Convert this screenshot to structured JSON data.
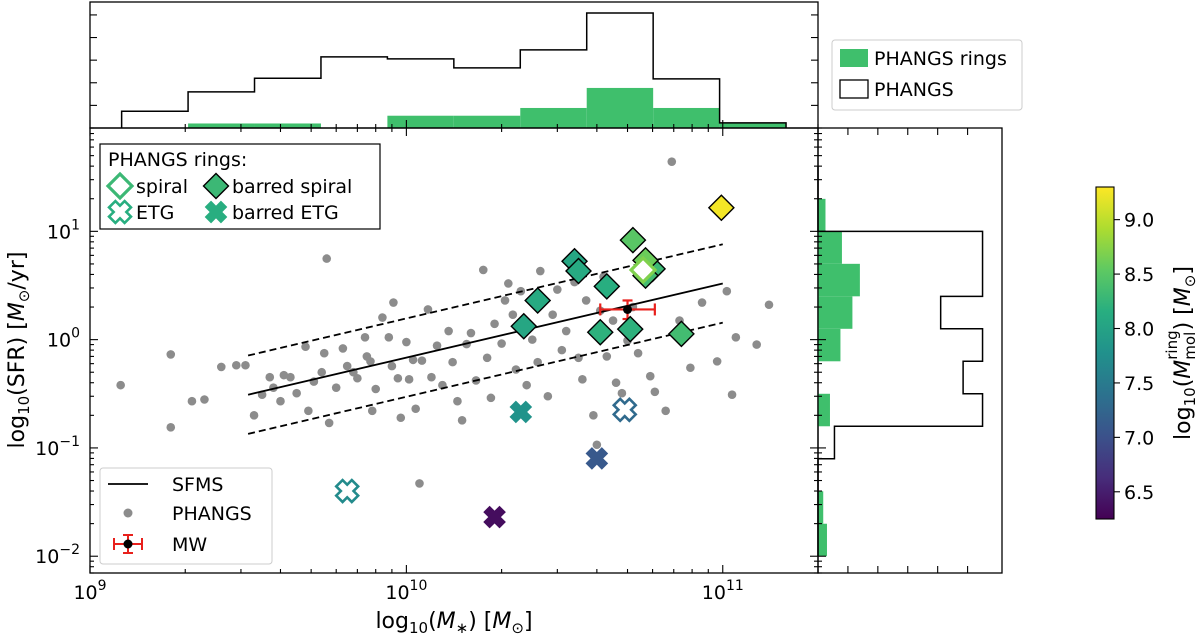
{
  "chart_data": {
    "type": "scatter",
    "xlabel": "log10(M*) [M⊙]",
    "ylabel": "log10(SFR) [M⊙/yr]",
    "x_scale": "log",
    "y_scale": "log",
    "xlim": [
      1000000000.0,
      200000000000.0
    ],
    "ylim": [
      0.007,
      90
    ],
    "x_ticks": [
      {
        "value": 1000000000.0,
        "base": "10",
        "exp": "9"
      },
      {
        "value": 10000000000.0,
        "base": "10",
        "exp": "10"
      },
      {
        "value": 100000000000.0,
        "base": "10",
        "exp": "11"
      }
    ],
    "y_ticks": [
      {
        "value": 0.01,
        "base": "10",
        "exp": "−2"
      },
      {
        "value": 0.1,
        "base": "10",
        "exp": "−1"
      },
      {
        "value": 1,
        "base": "10",
        "exp": "0"
      },
      {
        "value": 10,
        "base": "10",
        "exp": "1"
      }
    ],
    "sfms": {
      "label": "SFMS",
      "x_range": [
        3160000000.0,
        100000000000.0
      ],
      "y_range": [
        0.31,
        3.3
      ],
      "scatter_factor": 2.3
    },
    "phangs": {
      "label": "PHANGS",
      "color": "#8c8c8c",
      "points": [
        [
          1250000000.0,
          0.38
        ],
        [
          1800000000.0,
          0.73
        ],
        [
          1800000000.0,
          0.155
        ],
        [
          2100000000.0,
          0.27
        ],
        [
          2300000000.0,
          0.28
        ],
        [
          2600000000.0,
          0.56
        ],
        [
          2900000000.0,
          0.58
        ],
        [
          3100000000.0,
          0.58
        ],
        [
          3300000000.0,
          0.2
        ],
        [
          3500000000.0,
          0.31
        ],
        [
          3700000000.0,
          0.45
        ],
        [
          3800000000.0,
          0.36
        ],
        [
          4000000000.0,
          0.27
        ],
        [
          4100000000.0,
          0.47
        ],
        [
          4300000000.0,
          0.45
        ],
        [
          4500000000.0,
          0.32
        ],
        [
          4800000000.0,
          0.86
        ],
        [
          4900000000.0,
          0.22
        ],
        [
          5100000000.0,
          0.41
        ],
        [
          5400000000.0,
          0.5
        ],
        [
          5500000000.0,
          0.75
        ],
        [
          5600000000.0,
          5.6
        ],
        [
          5700000000.0,
          0.17
        ],
        [
          6000000000.0,
          0.36
        ],
        [
          6300000000.0,
          0.83
        ],
        [
          6500000000.0,
          0.57
        ],
        [
          6800000000.0,
          0.5
        ],
        [
          7000000000.0,
          0.44
        ],
        [
          7400000000.0,
          1.05
        ],
        [
          7500000000.0,
          0.7
        ],
        [
          7700000000.0,
          0.63
        ],
        [
          7800000000.0,
          0.22
        ],
        [
          8000000000.0,
          0.35
        ],
        [
          8400000000.0,
          1.6
        ],
        [
          8800000000.0,
          1.05
        ],
        [
          9000000000.0,
          0.57
        ],
        [
          9100000000.0,
          2.2
        ],
        [
          9400000000.0,
          0.44
        ],
        [
          9600000000.0,
          0.19
        ],
        [
          10000000000.0,
          0.95
        ],
        [
          10200000000.0,
          0.43
        ],
        [
          10500000000.0,
          0.65
        ],
        [
          10700000000.0,
          0.23
        ],
        [
          11000000000.0,
          0.047
        ],
        [
          11200000000.0,
          0.64
        ],
        [
          11700000000.0,
          1.9
        ],
        [
          12000000000.0,
          0.45
        ],
        [
          12500000000.0,
          0.88
        ],
        [
          13000000000.0,
          0.38
        ],
        [
          13600000000.0,
          1.2
        ],
        [
          14000000000.0,
          0.62
        ],
        [
          14500000000.0,
          0.27
        ],
        [
          15000000000.0,
          0.18
        ],
        [
          15500000000.0,
          0.91
        ],
        [
          16000000000.0,
          1.15
        ],
        [
          16600000000.0,
          0.42
        ],
        [
          17500000000.0,
          4.4
        ],
        [
          18000000000.0,
          0.68
        ],
        [
          18500000000.0,
          0.29
        ],
        [
          19000000000.0,
          1.4
        ],
        [
          20000000000.0,
          0.92
        ],
        [
          20500000000.0,
          2.3
        ],
        [
          21000000000.0,
          3.3
        ],
        [
          21700000000.0,
          1.7
        ],
        [
          22200000000.0,
          0.53
        ],
        [
          23000000000.0,
          2.8
        ],
        [
          24000000000.0,
          0.38
        ],
        [
          25000000000.0,
          1.0
        ],
        [
          26000000000.0,
          0.62
        ],
        [
          26500000000.0,
          4.3
        ],
        [
          28000000000.0,
          0.3
        ],
        [
          29000000000.0,
          1.7
        ],
        [
          30000000000.0,
          2.9
        ],
        [
          31000000000.0,
          0.8
        ],
        [
          32000000000.0,
          1.2
        ],
        [
          34000000000.0,
          3.4
        ],
        [
          35000000000.0,
          0.68
        ],
        [
          36000000000.0,
          0.43
        ],
        [
          37000000000.0,
          2.3
        ],
        [
          39000000000.0,
          0.2
        ],
        [
          40000000000.0,
          0.107
        ],
        [
          41000000000.0,
          1.85
        ],
        [
          42000000000.0,
          3.8
        ],
        [
          43000000000.0,
          0.7
        ],
        [
          45000000000.0,
          1.5
        ],
        [
          46000000000.0,
          0.4
        ],
        [
          48000000000.0,
          0.32
        ],
        [
          50000000000.0,
          0.98
        ],
        [
          52000000000.0,
          2.0
        ],
        [
          54000000000.0,
          0.75
        ],
        [
          57000000000.0,
          3.4
        ],
        [
          59000000000.0,
          0.46
        ],
        [
          61000000000.0,
          0.33
        ],
        [
          66000000000.0,
          0.22
        ],
        [
          69000000000.0,
          44
        ],
        [
          73000000000.0,
          1.5
        ],
        [
          79000000000.0,
          0.55
        ],
        [
          86000000000.0,
          2.2
        ],
        [
          96000000000.0,
          0.63
        ],
        [
          103000000000.0,
          2.8
        ],
        [
          107000000000.0,
          0.31
        ],
        [
          110000000000.0,
          1.05
        ],
        [
          128000000000.0,
          0.9
        ],
        [
          140000000000.0,
          2.1
        ]
      ]
    },
    "mw": {
      "label": "MW",
      "x": 50000000000.0,
      "y": 1.9,
      "x_err": [
        41000000000.0,
        61000000000.0
      ],
      "y_err": [
        1.55,
        2.3
      ],
      "color": "#e8201c"
    },
    "rings": {
      "colorbar_label_text": "log10(M_mol^ring) [M⊙]",
      "colorbar_range": [
        6.25,
        9.3
      ],
      "colorbar_ticks": [
        "6.5",
        "7.0",
        "7.5",
        "8.0",
        "8.5",
        "9.0"
      ],
      "legend_title": "PHANGS rings:",
      "legend": {
        "spiral": "spiral",
        "barred_spiral": "barred spiral",
        "etg": "ETG",
        "barred_etg": "barred ETG"
      },
      "points": [
        {
          "x": 34000000000.0,
          "y": 5.3,
          "c": 8.05,
          "kind": "barred_spiral"
        },
        {
          "x": 35000000000.0,
          "y": 4.3,
          "c": 8.1,
          "kind": "barred_spiral"
        },
        {
          "x": 26000000000.0,
          "y": 2.3,
          "c": 8.1,
          "kind": "barred_spiral"
        },
        {
          "x": 23500000000.0,
          "y": 1.33,
          "c": 8.05,
          "kind": "barred_spiral"
        },
        {
          "x": 43000000000.0,
          "y": 3.1,
          "c": 8.15,
          "kind": "barred_spiral"
        },
        {
          "x": 41000000000.0,
          "y": 1.17,
          "c": 8.2,
          "kind": "barred_spiral"
        },
        {
          "x": 51000000000.0,
          "y": 1.25,
          "c": 8.2,
          "kind": "barred_spiral"
        },
        {
          "x": 52000000000.0,
          "y": 8.3,
          "c": 8.5,
          "kind": "barred_spiral"
        },
        {
          "x": 57000000000.0,
          "y": 5.4,
          "c": 8.6,
          "kind": "barred_spiral"
        },
        {
          "x": 60000000000.0,
          "y": 4.5,
          "c": 8.3,
          "kind": "barred_spiral"
        },
        {
          "x": 57000000000.0,
          "y": 3.9,
          "c": 8.35,
          "kind": "barred_spiral"
        },
        {
          "x": 74000000000.0,
          "y": 1.13,
          "c": 8.35,
          "kind": "barred_spiral"
        },
        {
          "x": 56000000000.0,
          "y": 4.4,
          "c": 8.7,
          "kind": "spiral"
        },
        {
          "x": 99000000000.0,
          "y": 16.5,
          "c": 9.25,
          "kind": "barred_spiral"
        },
        {
          "x": 23000000000.0,
          "y": 0.215,
          "c": 7.8,
          "kind": "barred_etg"
        },
        {
          "x": 49000000000.0,
          "y": 0.225,
          "c": 7.3,
          "kind": "etg"
        },
        {
          "x": 40000000000.0,
          "y": 0.08,
          "c": 7.1,
          "kind": "barred_etg"
        },
        {
          "x": 6500000000.0,
          "y": 0.04,
          "c": 7.7,
          "kind": "etg"
        },
        {
          "x": 19000000000.0,
          "y": 0.023,
          "c": 6.35,
          "kind": "barred_etg"
        }
      ]
    },
    "top_histogram": {
      "bins_log10": [
        9.1,
        9.31,
        9.52,
        9.73,
        9.94,
        10.15,
        10.36,
        10.57,
        10.78,
        10.99,
        11.2
      ],
      "phangs_counts": [
        2.6,
        5.6,
        7.7,
        11.0,
        10.7,
        9.3,
        12.1,
        17.8,
        7.6,
        0.8
      ],
      "rings_counts": [
        0,
        0.7,
        0.7,
        0,
        1.9,
        1.9,
        3.1,
        6.2,
        3.1,
        0.8
      ]
    },
    "right_histogram": {
      "bins_log10": [
        -2.0,
        -1.7,
        -1.4,
        -1.1,
        -0.8,
        -0.5,
        -0.2,
        0.1,
        0.4,
        0.7,
        1.0,
        1.3,
        1.6
      ],
      "phangs_counts": [
        0,
        0,
        0,
        1.1,
        11.0,
        9.7,
        11.0,
        8.2,
        11.0,
        11.0,
        0,
        0
      ],
      "rings_counts": [
        0.6,
        0.35,
        0,
        0,
        0.8,
        0,
        1.5,
        2.3,
        2.8,
        1.6,
        0.5,
        0
      ]
    },
    "hist_legend": {
      "rings": "PHANGS rings",
      "phangs": "PHANGS",
      "rings_color": "#3fbf6c"
    }
  }
}
